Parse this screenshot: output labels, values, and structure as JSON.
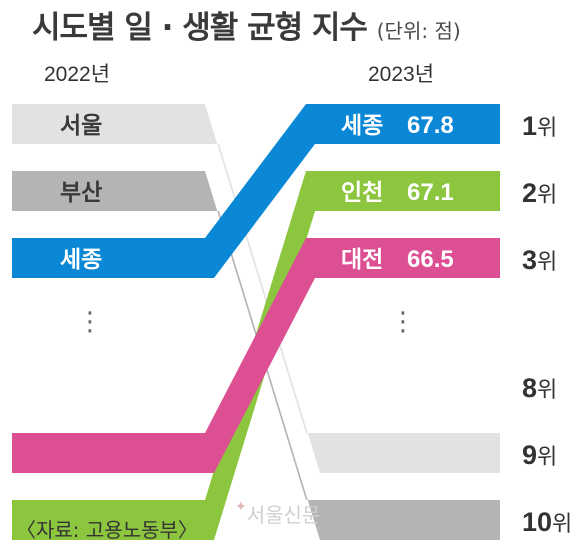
{
  "title": "시도별 일 · 생활 균형 지수",
  "unit": "(단위: 점)",
  "source": "〈자료: 고용노동부〉",
  "watermark": "서울신문",
  "ellipsis": "⋮",
  "rank_suffix": "위",
  "chart_data": {
    "type": "bump",
    "periods": [
      "2022년",
      "2023년"
    ],
    "colors": {
      "seoul": "#e2e2e2",
      "busan": "#b4b4b4",
      "sejong": "#0a88d6",
      "incheon": "#8cc63f",
      "daejeon": "#dc4f93"
    },
    "ranks_shown": [
      1,
      2,
      3,
      8,
      9,
      10
    ],
    "series": [
      {
        "name": "서울",
        "key": "seoul",
        "rank_2022": 1,
        "rank_2023": 9,
        "label_2022": "서울",
        "label_2023": "",
        "value_2023": null
      },
      {
        "name": "부산",
        "key": "busan",
        "rank_2022": 2,
        "rank_2023": 10,
        "label_2022": "부산",
        "label_2023": "",
        "value_2023": null
      },
      {
        "name": "세종",
        "key": "sejong",
        "rank_2022": 3,
        "rank_2023": 1,
        "label_2022": "세종",
        "label_2023": "세종",
        "value_2023": "67.8"
      },
      {
        "name": "인천",
        "key": "incheon",
        "rank_2022": 10,
        "rank_2023": 2,
        "label_2022": "",
        "label_2023": "인천",
        "value_2023": "67.1"
      },
      {
        "name": "대전",
        "key": "daejeon",
        "rank_2022": 9,
        "rank_2023": 3,
        "label_2022": "",
        "label_2023": "대전",
        "value_2023": "66.5"
      }
    ]
  }
}
